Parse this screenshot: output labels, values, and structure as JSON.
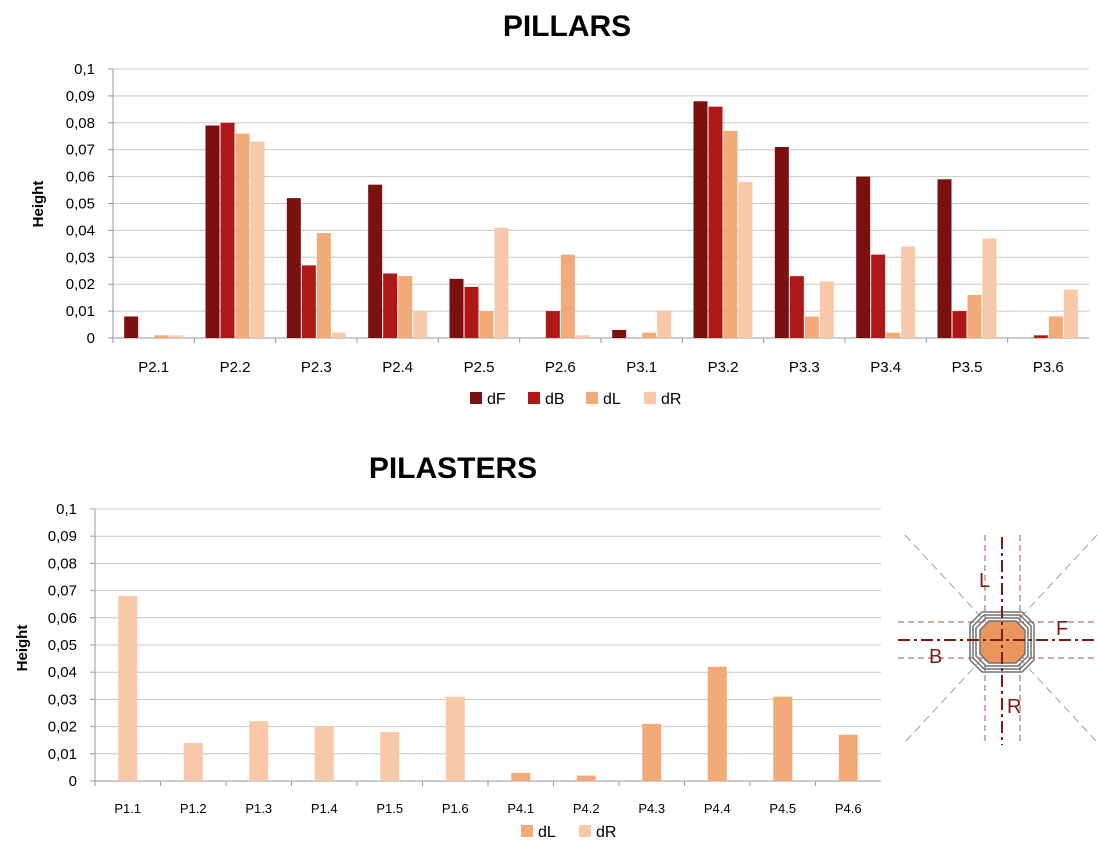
{
  "colors": {
    "dF": "#7b1010",
    "dB": "#b01818",
    "dL": "#f2aa78",
    "dR": "#f7c9a8"
  },
  "chart_data": [
    {
      "type": "bar",
      "title": "PILLARS",
      "ylabel": "Height",
      "xlabel": "",
      "ylim": [
        0,
        0.1
      ],
      "yticks": [
        "0",
        "0,01",
        "0,02",
        "0,03",
        "0,04",
        "0,05",
        "0,06",
        "0,07",
        "0,08",
        "0,09",
        "0,1"
      ],
      "grid": true,
      "legend": "bottom",
      "categories": [
        "P2.1",
        "P2.2",
        "P2.3",
        "P2.4",
        "P2.5",
        "P2.6",
        "P3.1",
        "P3.2",
        "P3.3",
        "P3.4",
        "P3.5",
        "P3.6"
      ],
      "series": [
        {
          "name": "dF",
          "values": [
            0.008,
            0.079,
            0.052,
            0.057,
            0.022,
            0.0,
            0.003,
            0.088,
            0.071,
            0.06,
            0.059,
            0.0
          ]
        },
        {
          "name": "dB",
          "values": [
            0.0,
            0.08,
            0.027,
            0.024,
            0.019,
            0.01,
            0.0,
            0.086,
            0.023,
            0.031,
            0.01,
            0.001
          ]
        },
        {
          "name": "dL",
          "values": [
            0.001,
            0.076,
            0.039,
            0.023,
            0.01,
            0.031,
            0.002,
            0.077,
            0.008,
            0.002,
            0.016,
            0.008
          ]
        },
        {
          "name": "dR",
          "values": [
            0.001,
            0.073,
            0.002,
            0.01,
            0.041,
            0.001,
            0.01,
            0.058,
            0.021,
            0.034,
            0.037,
            0.018
          ]
        }
      ]
    },
    {
      "type": "bar",
      "title": "PILASTERS",
      "ylabel": "Height",
      "xlabel": "",
      "ylim": [
        0,
        0.1
      ],
      "yticks": [
        "0",
        "0,01",
        "0,02",
        "0,03",
        "0,04",
        "0,05",
        "0,06",
        "0,07",
        "0,08",
        "0,09",
        "0,1"
      ],
      "grid": true,
      "legend": "bottom",
      "categories": [
        "P1.1",
        "P1.2",
        "P1.3",
        "P1.4",
        "P1.5",
        "P1.6",
        "P4.1",
        "P4.2",
        "P4.3",
        "P4.4",
        "P4.5",
        "P4.6"
      ],
      "series": [
        {
          "name": "dL",
          "values": [
            0,
            0,
            0,
            0,
            0,
            0,
            0.003,
            0.002,
            0.021,
            0.042,
            0.031,
            0.017
          ]
        },
        {
          "name": "dR",
          "values": [
            0.068,
            0.014,
            0.022,
            0.02,
            0.018,
            0.031,
            0,
            0,
            0,
            0,
            0,
            0
          ]
        }
      ]
    }
  ],
  "diagram": {
    "labels": {
      "L": "L",
      "F": "F",
      "B": "B",
      "R": "R"
    }
  }
}
